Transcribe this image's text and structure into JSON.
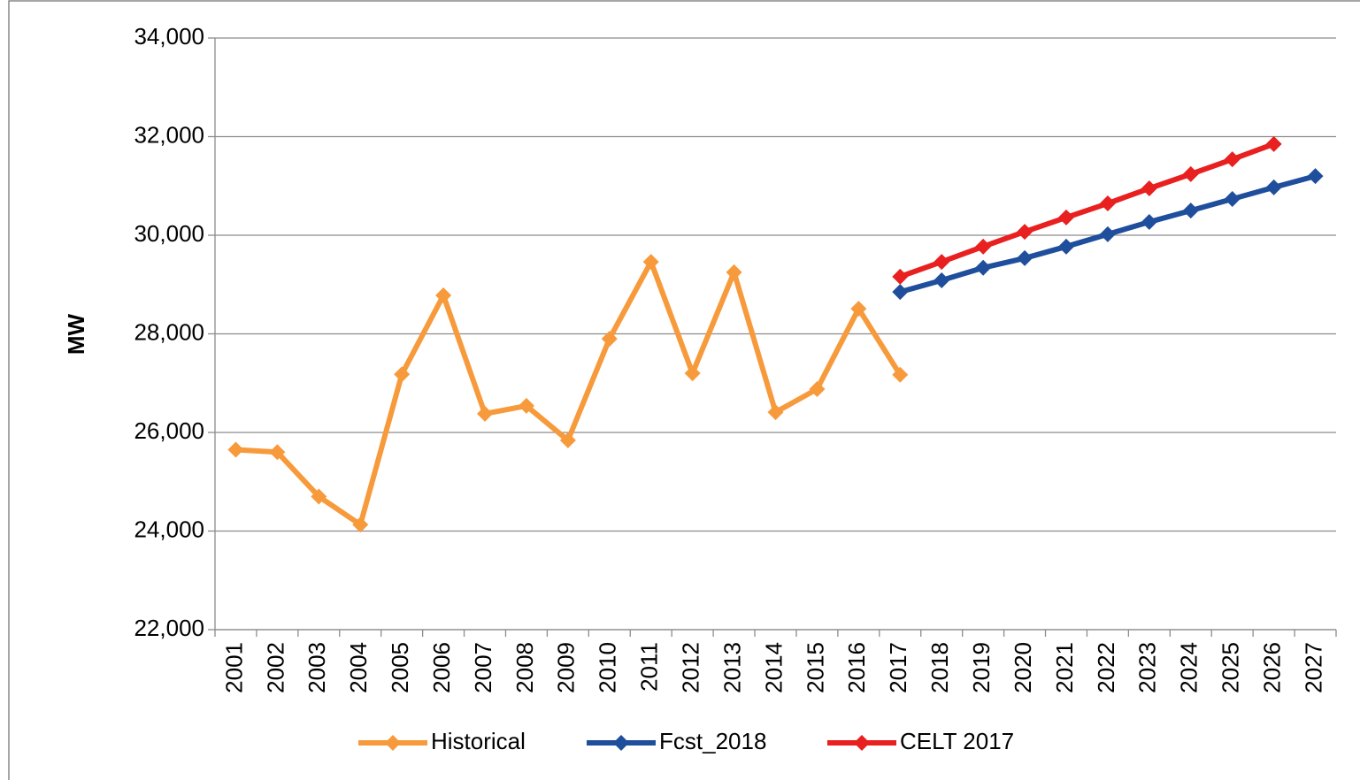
{
  "chart_data": {
    "type": "line",
    "y_label": "MW",
    "categories": [
      "2001",
      "2002",
      "2003",
      "2004",
      "2005",
      "2006",
      "2007",
      "2008",
      "2009",
      "2010",
      "2011",
      "2012",
      "2013",
      "2014",
      "2015",
      "2016",
      "2017",
      "2018",
      "2019",
      "2020",
      "2021",
      "2022",
      "2023",
      "2024",
      "2025",
      "2026",
      "2027"
    ],
    "series": [
      {
        "name": "Historical",
        "color": "#f79a3c",
        "values": [
          25650,
          25600,
          24700,
          24130,
          27180,
          28780,
          26380,
          26540,
          25840,
          27900,
          29460,
          27200,
          29250,
          26410,
          26880,
          28510,
          27170,
          null,
          null,
          null,
          null,
          null,
          null,
          null,
          null,
          null,
          null
        ]
      },
      {
        "name": "Fcst_2018",
        "color": "#1f4e9c",
        "values": [
          null,
          null,
          null,
          null,
          null,
          null,
          null,
          null,
          null,
          null,
          null,
          null,
          null,
          null,
          null,
          null,
          28850,
          29085,
          29340,
          29535,
          29770,
          30020,
          30270,
          30500,
          30735,
          30970,
          31200
        ]
      },
      {
        "name": "CELT 2017",
        "color": "#e8201f",
        "values": [
          null,
          null,
          null,
          null,
          null,
          null,
          null,
          null,
          null,
          null,
          null,
          null,
          null,
          null,
          null,
          null,
          29160,
          29460,
          29770,
          30070,
          30360,
          30645,
          30950,
          31240,
          31540,
          31850,
          null
        ]
      }
    ],
    "ylim": [
      22000,
      34000
    ],
    "yticks": [
      {
        "value": 22000,
        "label": "22,000"
      },
      {
        "value": 24000,
        "label": "24,000"
      },
      {
        "value": 26000,
        "label": "26,000"
      },
      {
        "value": 28000,
        "label": "28,000"
      },
      {
        "value": 30000,
        "label": "30,000"
      },
      {
        "value": 32000,
        "label": "32,000"
      },
      {
        "value": 34000,
        "label": "34,000"
      }
    ],
    "grid": true,
    "legend": "bottom"
  }
}
